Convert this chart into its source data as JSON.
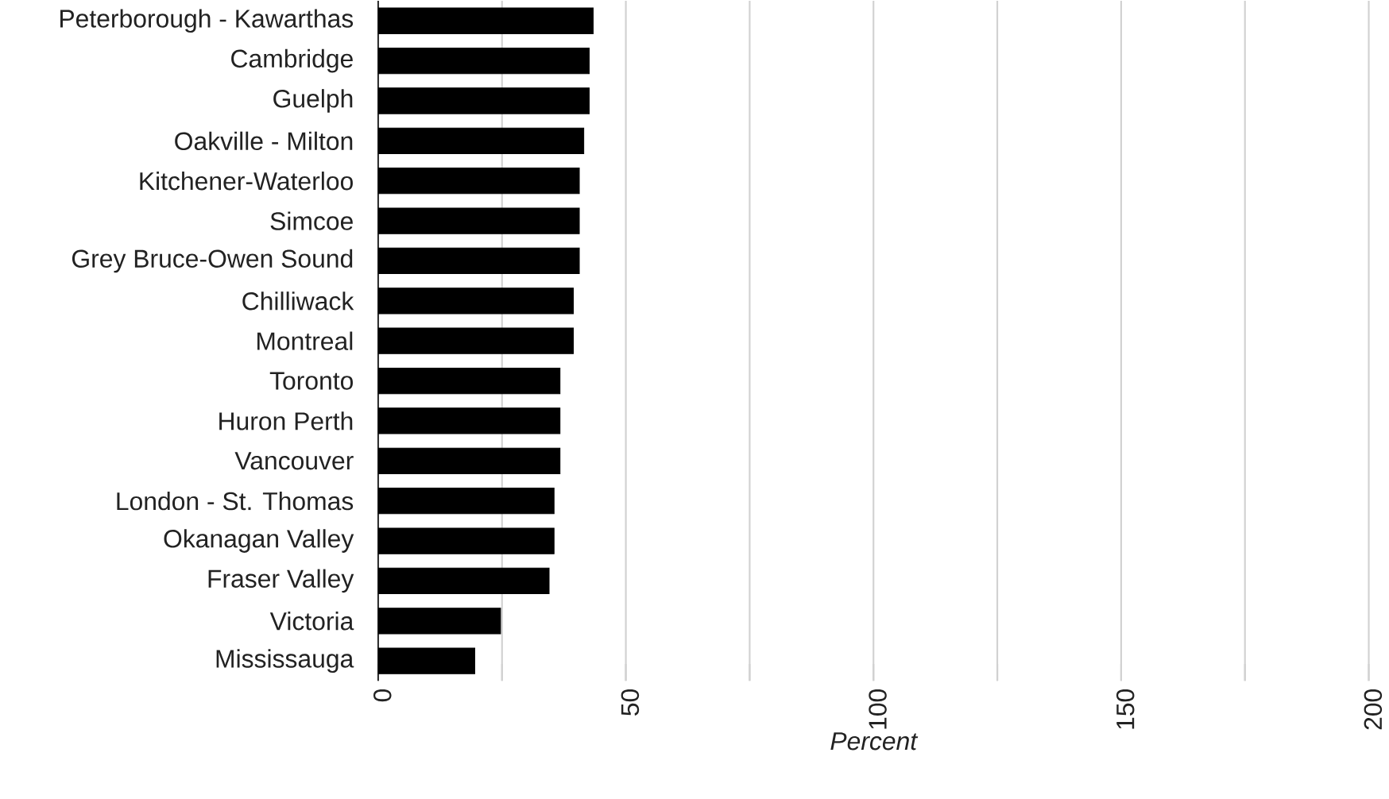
{
  "chart_data": {
    "type": "bar",
    "orientation": "horizontal",
    "xlabel": "Percent",
    "categories": [
      "Peterborough - Kawarthas",
      "Cambridge",
      "Guelph",
      "Oakville - Milton",
      "Kitchener-Waterloo",
      "Simcoe",
      "Grey Bruce-Owen Sound",
      "Chilliwack",
      "Montreal",
      "Toronto",
      "Huron Perth",
      "Vancouver",
      "London - St. Thomas",
      "Okanagan Valley",
      "Fraser Valley",
      "Victoria",
      "Mississauga"
    ],
    "values": [
      43.4,
      42.6,
      42.6,
      41.5,
      40.6,
      40.6,
      40.6,
      39.4,
      39.4,
      36.7,
      36.7,
      36.7,
      35.5,
      35.5,
      34.5,
      24.7,
      19.5
    ],
    "color": "#000000",
    "xlim": [
      0,
      200
    ],
    "xticks": [
      0,
      {
        "value": 25,
        "label": null
      },
      50,
      {
        "value": 75,
        "label": null
      },
      100,
      {
        "value": 125,
        "label": null
      },
      150,
      {
        "value": 175,
        "label": null
      },
      200
    ],
    "grid": "x"
  }
}
